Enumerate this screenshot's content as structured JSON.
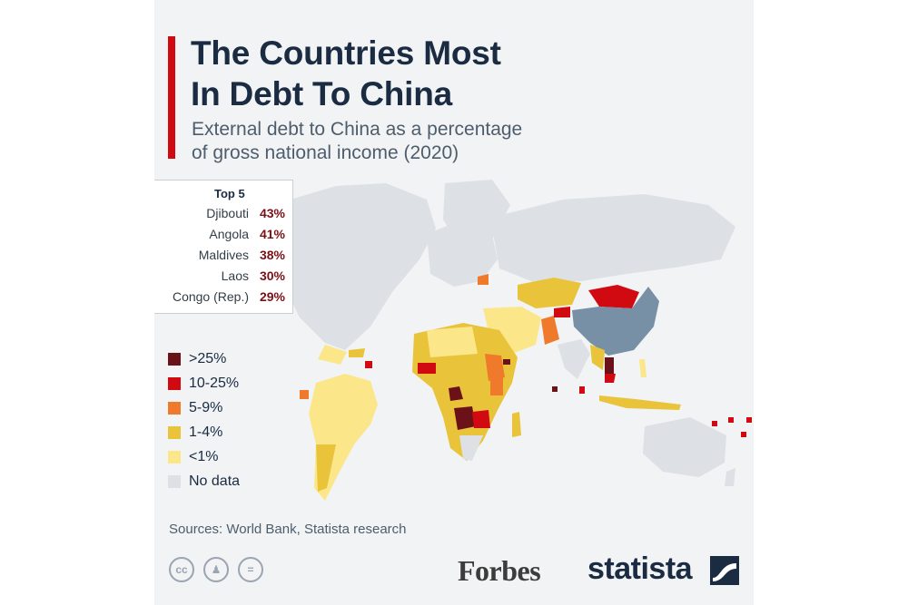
{
  "title": [
    "The Countries Most",
    "In Debt To China"
  ],
  "subtitle": [
    "External debt to China as a percentage",
    "of gross national income (2020)"
  ],
  "top5": {
    "title": "Top 5",
    "rows": [
      {
        "country": "Djibouti",
        "value": "43%"
      },
      {
        "country": "Angola",
        "value": "41%"
      },
      {
        "country": "Maldives",
        "value": "38%"
      },
      {
        "country": "Laos",
        "value": "30%"
      },
      {
        "country": "Congo (Rep.)",
        "value": "29%"
      }
    ]
  },
  "legend": [
    {
      "label": ">25%",
      "color": "#6b1218"
    },
    {
      "label": "10-25%",
      "color": "#d10a11"
    },
    {
      "label": "5-9%",
      "color": "#f07a2c"
    },
    {
      "label": "1-4%",
      "color": "#e9c43a"
    },
    {
      "label": "<1%",
      "color": "#fbe78a"
    },
    {
      "label": "No data",
      "color": "#dde1e5"
    }
  ],
  "colors": {
    "china": "#7890a6",
    "no_data": "#dde1e5",
    "accent": "#d10a11",
    "title": "#1a2b42"
  },
  "sources": "Sources: World Bank, Statista research",
  "cc_icons": [
    "cc-icon",
    "attribution-icon",
    "no-derivatives-icon"
  ],
  "logos": {
    "forbes": "Forbes",
    "statista": "statista"
  }
}
